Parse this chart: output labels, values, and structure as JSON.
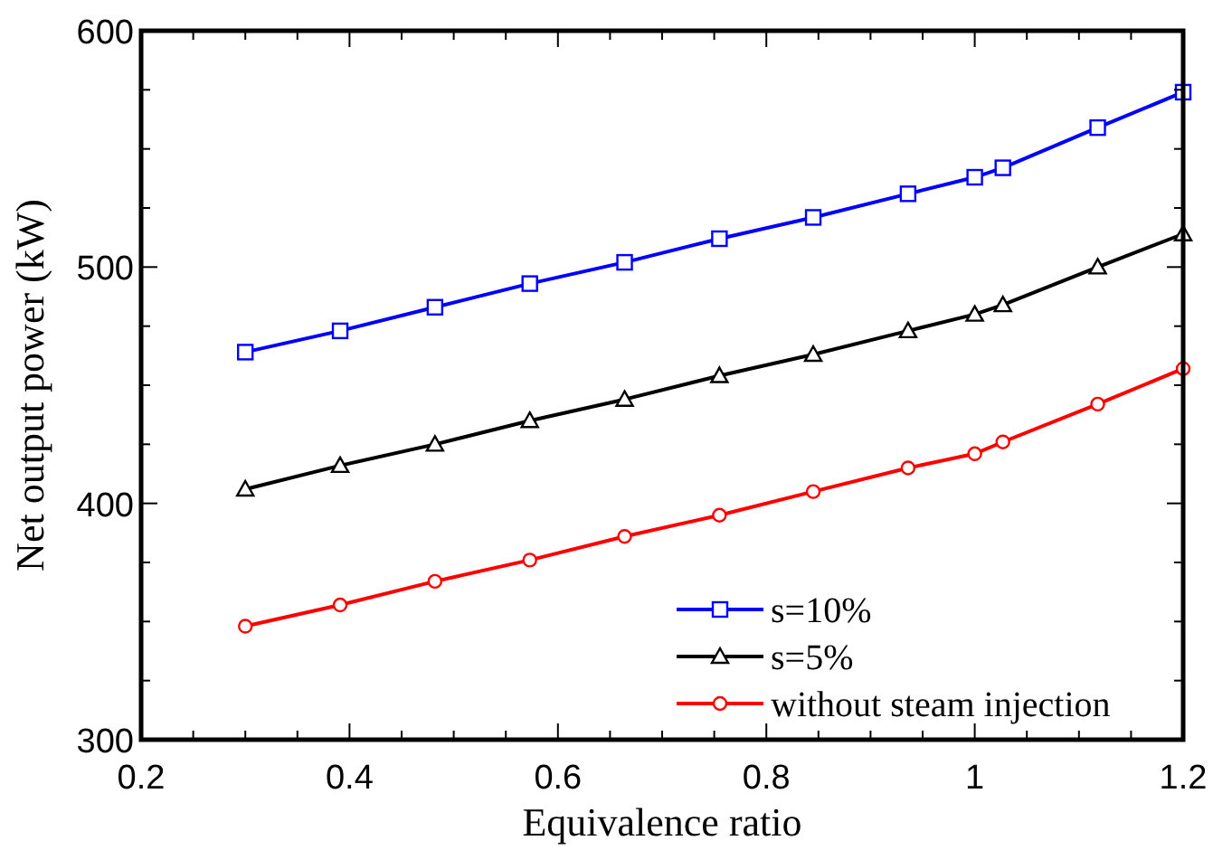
{
  "chart_data": {
    "type": "line",
    "xlabel": "Equivalence ratio",
    "ylabel": "Net output power (kW)",
    "x": [
      0.3,
      0.391,
      0.482,
      0.573,
      0.664,
      0.755,
      0.845,
      0.936,
      1.0,
      1.027,
      1.118,
      1.2
    ],
    "series": [
      {
        "name": "s=10%",
        "color": "#0000ff",
        "marker": "square",
        "values": [
          464,
          473,
          483,
          493,
          502,
          512,
          521,
          531,
          538,
          542,
          559,
          574
        ]
      },
      {
        "name": "s=5%",
        "color": "#000000",
        "marker": "triangle",
        "values": [
          406,
          416,
          425,
          435,
          444,
          454,
          463,
          473,
          480,
          484,
          500,
          514
        ]
      },
      {
        "name": "without steam injection",
        "color": "#ff0000",
        "marker": "circle",
        "values": [
          348,
          357,
          367,
          376,
          386,
          395,
          405,
          415,
          421,
          426,
          442,
          457
        ]
      }
    ],
    "xlim": [
      0.2,
      1.2
    ],
    "xticks": [
      0.2,
      {
        "value": 0.25,
        "label": null
      },
      0.4,
      {
        "value": 0.3,
        "label": null
      },
      {
        "value": 0.35,
        "label": null
      },
      {
        "value": 0.45,
        "label": null
      },
      {
        "value": 0.5,
        "label": null
      },
      {
        "value": 0.55,
        "label": null
      },
      0.6,
      {
        "value": 0.65,
        "label": null
      },
      {
        "value": 0.7,
        "label": null
      },
      {
        "value": 0.75,
        "label": null
      },
      0.8,
      {
        "value": 0.85,
        "label": null
      },
      {
        "value": 0.9,
        "label": null
      },
      {
        "value": 0.95,
        "label": null
      },
      {
        "value": 1,
        "label": "1"
      },
      {
        "value": 1.05,
        "label": null
      },
      {
        "value": 1.1,
        "label": null
      },
      {
        "value": 1.15,
        "label": null
      },
      1.2
    ],
    "ylim": [
      300,
      600
    ],
    "yticks": [
      300,
      {
        "value": 325,
        "label": null
      },
      {
        "value": 350,
        "label": null
      },
      {
        "value": 375,
        "label": null
      },
      400,
      {
        "value": 425,
        "label": null
      },
      {
        "value": 450,
        "label": null
      },
      {
        "value": 475,
        "label": null
      },
      500,
      {
        "value": 525,
        "label": null
      },
      {
        "value": 550,
        "label": null
      },
      {
        "value": 575,
        "label": null
      },
      600
    ],
    "grid": false,
    "legend": "bottom right",
    "line_style": "solid"
  }
}
